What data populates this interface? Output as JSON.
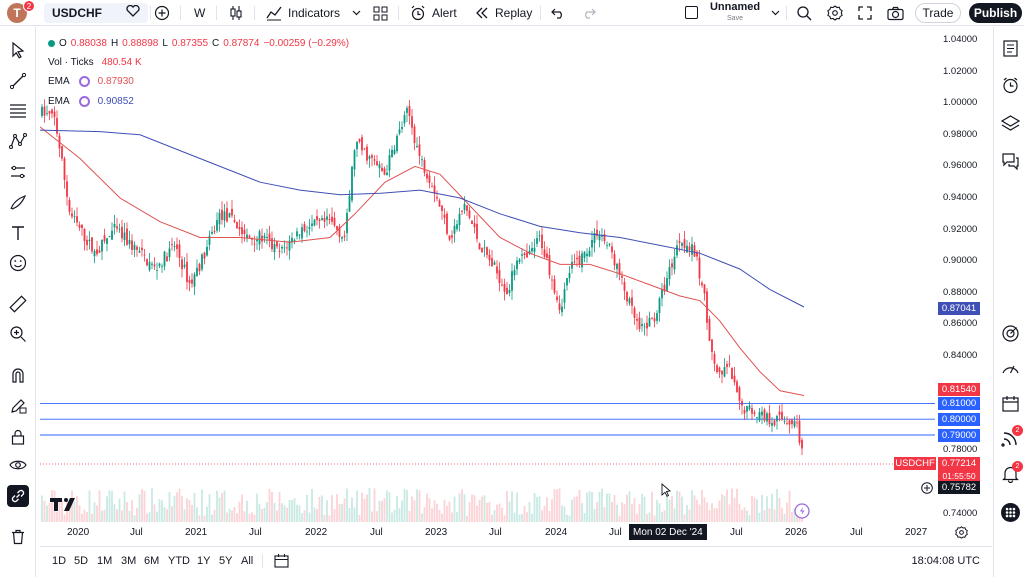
{
  "header": {
    "avatar_letter": "T",
    "avatar_badge": "2",
    "symbol": "USDCHF",
    "interval": "W",
    "indicators_label": "Indicators",
    "alert_label": "Alert",
    "replay_label": "Replay",
    "layout_name": "Unnamed",
    "save_label": "Save",
    "trade_label": "Trade",
    "publish_label": "Publish"
  },
  "legend": {
    "ohlc": {
      "o_label": "O",
      "o": "0.88038",
      "h_label": "H",
      "h": "0.88898",
      "l_label": "L",
      "l": "0.87355",
      "c_label": "C",
      "c": "0.87874",
      "change": "−0.00259 (−0.29%)"
    },
    "volume": {
      "label": "Vol · Ticks",
      "value": "480.54 K"
    },
    "ema1": {
      "label": "EMA",
      "value": "0.87930"
    },
    "ema2": {
      "label": "EMA",
      "value": "0.90852"
    }
  },
  "price_axis": {
    "ticks": [
      "1.04000",
      "1.02000",
      "1.00000",
      "0.98000",
      "0.96000",
      "0.94000",
      "0.92000",
      "0.90000",
      "0.88000",
      "0.86000",
      "0.84000",
      "0.78000",
      "0.74000"
    ],
    "tags": {
      "ema_slow": "0.87041",
      "ema_fast": "0.81540",
      "h1": "0.81000",
      "h2": "0.80000",
      "h3": "0.79000",
      "symbol_name": "USDCHF",
      "last": "0.77214",
      "countdown": "01:55:50",
      "crosshair": "0.75782"
    }
  },
  "time_axis": {
    "labels": [
      "2020",
      "Jul",
      "2021",
      "Jul",
      "2022",
      "Jul",
      "2023",
      "Jul",
      "2024",
      "Jul",
      "Jul",
      "2026",
      "Jul",
      "2027"
    ],
    "crosshair_date": "Mon 02 Dec '24"
  },
  "bottom_bar": {
    "ranges": [
      "1D",
      "5D",
      "1M",
      "3M",
      "6M",
      "YTD",
      "1Y",
      "5Y",
      "All"
    ],
    "clock": "18:04:08 UTC"
  },
  "right_toolbar": {
    "badge_1": "2",
    "badge_2": "2"
  },
  "colors": {
    "up": "#089981",
    "down": "#f23645",
    "ema_fast": "#e05252",
    "ema_slow": "#3f4fb6",
    "hline": "#2962ff",
    "ema_slow_tag": "#3f4fb6",
    "ema_fast_tag": "#f23645",
    "hline_tag": "#2962ff"
  }
}
